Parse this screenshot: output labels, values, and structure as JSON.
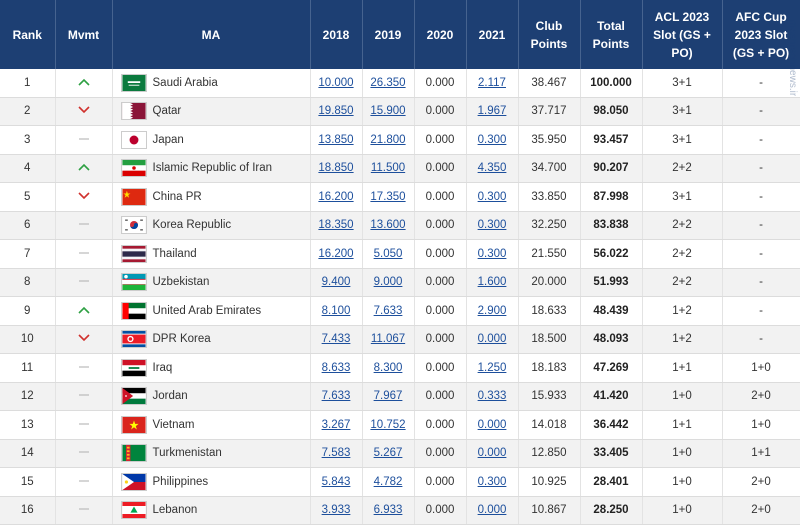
{
  "columns": {
    "rank": "Rank",
    "movement": "Mvmt",
    "ma": "MA",
    "y2018": "2018",
    "y2019": "2019",
    "y2020": "2020",
    "y2021": "2021",
    "club_points": "Club Points",
    "total_points": "Total Points",
    "acl_slot": "ACL 2023 Slot (GS + PO)",
    "afc_cup_slot": "AFC Cup 2023 Slot (GS + PO)"
  },
  "watermark": "mashreghnews.ir",
  "rows": [
    {
      "rank": "1",
      "mvmt": "up",
      "mvmt_symbol": "^",
      "flag": "saudi-arabia",
      "ma": "Saudi Arabia",
      "y2018": "10.000",
      "y2019": "26.350",
      "y2020": "0.000",
      "y2021": "2.117",
      "club": "38.467",
      "total": "100.000",
      "acl": "3+1",
      "afc": "-"
    },
    {
      "rank": "2",
      "mvmt": "down",
      "mvmt_symbol": "v",
      "flag": "qatar",
      "ma": "Qatar",
      "y2018": "19.850",
      "y2019": "15.900",
      "y2020": "0.000",
      "y2021": "1.967",
      "club": "37.717",
      "total": "98.050",
      "acl": "3+1",
      "afc": "-"
    },
    {
      "rank": "3",
      "mvmt": "same",
      "mvmt_symbol": "—",
      "flag": "japan",
      "ma": "Japan",
      "y2018": "13.850",
      "y2019": "21.800",
      "y2020": "0.000",
      "y2021": "0.300",
      "club": "35.950",
      "total": "93.457",
      "acl": "3+1",
      "afc": "-"
    },
    {
      "rank": "4",
      "mvmt": "up",
      "mvmt_symbol": "^",
      "flag": "iran",
      "ma": "Islamic Republic of Iran",
      "y2018": "18.850",
      "y2019": "11.500",
      "y2020": "0.000",
      "y2021": "4.350",
      "club": "34.700",
      "total": "90.207",
      "acl": "2+2",
      "afc": "-"
    },
    {
      "rank": "5",
      "mvmt": "down",
      "mvmt_symbol": "v",
      "flag": "china",
      "ma": "China PR",
      "y2018": "16.200",
      "y2019": "17.350",
      "y2020": "0.000",
      "y2021": "0.300",
      "club": "33.850",
      "total": "87.998",
      "acl": "3+1",
      "afc": "-"
    },
    {
      "rank": "6",
      "mvmt": "same",
      "mvmt_symbol": "—",
      "flag": "korea",
      "ma": "Korea Republic",
      "y2018": "18.350",
      "y2019": "13.600",
      "y2020": "0.000",
      "y2021": "0.300",
      "club": "32.250",
      "total": "83.838",
      "acl": "2+2",
      "afc": "-"
    },
    {
      "rank": "7",
      "mvmt": "same",
      "mvmt_symbol": "—",
      "flag": "thailand",
      "ma": "Thailand",
      "y2018": "16.200",
      "y2019": "5.050",
      "y2020": "0.000",
      "y2021": "0.300",
      "club": "21.550",
      "total": "56.022",
      "acl": "2+2",
      "afc": "-"
    },
    {
      "rank": "8",
      "mvmt": "same",
      "mvmt_symbol": "—",
      "flag": "uzbekistan",
      "ma": "Uzbekistan",
      "y2018": "9.400",
      "y2019": "9.000",
      "y2020": "0.000",
      "y2021": "1.600",
      "club": "20.000",
      "total": "51.993",
      "acl": "2+2",
      "afc": "-"
    },
    {
      "rank": "9",
      "mvmt": "up",
      "mvmt_symbol": "^",
      "flag": "uae",
      "ma": "United Arab Emirates",
      "y2018": "8.100",
      "y2019": "7.633",
      "y2020": "0.000",
      "y2021": "2.900",
      "club": "18.633",
      "total": "48.439",
      "acl": "1+2",
      "afc": "-"
    },
    {
      "rank": "10",
      "mvmt": "down",
      "mvmt_symbol": "v",
      "flag": "dpr-korea",
      "ma": "DPR Korea",
      "y2018": "7.433",
      "y2019": "11.067",
      "y2020": "0.000",
      "y2021": "0.000",
      "club": "18.500",
      "total": "48.093",
      "acl": "1+2",
      "afc": "-"
    },
    {
      "rank": "11",
      "mvmt": "same",
      "mvmt_symbol": "—",
      "flag": "iraq",
      "ma": "Iraq",
      "y2018": "8.633",
      "y2019": "8.300",
      "y2020": "0.000",
      "y2021": "1.250",
      "club": "18.183",
      "total": "47.269",
      "acl": "1+1",
      "afc": "1+0"
    },
    {
      "rank": "12",
      "mvmt": "same",
      "mvmt_symbol": "—",
      "flag": "jordan",
      "ma": "Jordan",
      "y2018": "7.633",
      "y2019": "7.967",
      "y2020": "0.000",
      "y2021": "0.333",
      "club": "15.933",
      "total": "41.420",
      "acl": "1+0",
      "afc": "2+0"
    },
    {
      "rank": "13",
      "mvmt": "same",
      "mvmt_symbol": "—",
      "flag": "vietnam",
      "ma": "Vietnam",
      "y2018": "3.267",
      "y2019": "10.752",
      "y2020": "0.000",
      "y2021": "0.000",
      "club": "14.018",
      "total": "36.442",
      "acl": "1+1",
      "afc": "1+0"
    },
    {
      "rank": "14",
      "mvmt": "same",
      "mvmt_symbol": "—",
      "flag": "turkmenistan",
      "ma": "Turkmenistan",
      "y2018": "7.583",
      "y2019": "5.267",
      "y2020": "0.000",
      "y2021": "0.000",
      "club": "12.850",
      "total": "33.405",
      "acl": "1+0",
      "afc": "1+1"
    },
    {
      "rank": "15",
      "mvmt": "same",
      "mvmt_symbol": "—",
      "flag": "philippines",
      "ma": "Philippines",
      "y2018": "5.843",
      "y2019": "4.782",
      "y2020": "0.000",
      "y2021": "0.300",
      "club": "10.925",
      "total": "28.401",
      "acl": "1+0",
      "afc": "2+0"
    },
    {
      "rank": "16",
      "mvmt": "same",
      "mvmt_symbol": "—",
      "flag": "lebanon",
      "ma": "Lebanon",
      "y2018": "3.933",
      "y2019": "6.933",
      "y2020": "0.000",
      "y2021": "0.000",
      "club": "10.867",
      "total": "28.250",
      "acl": "1+0",
      "afc": "2+0"
    }
  ]
}
